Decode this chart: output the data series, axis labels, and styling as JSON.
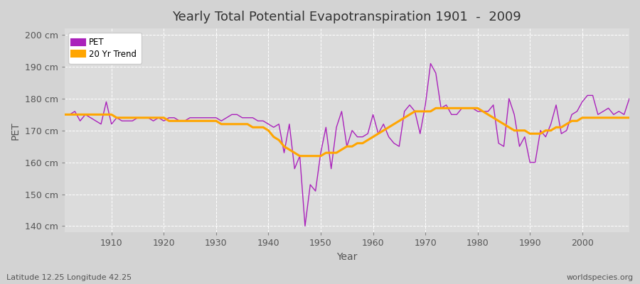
{
  "title": "Yearly Total Potential Evapotranspiration 1901  -  2009",
  "xlabel": "Year",
  "ylabel": "PET",
  "subtitle_left": "Latitude 12.25 Longitude 42.25",
  "subtitle_right": "worldspecies.org",
  "pet_color": "#AA22BB",
  "trend_color": "#FFA500",
  "fig_bg_color": "#D3D3D3",
  "plot_bg_color": "#DCDCDC",
  "grid_color": "#FFFFFF",
  "ylim": [
    138,
    202
  ],
  "yticks": [
    140,
    150,
    160,
    170,
    180,
    190,
    200
  ],
  "ytick_labels": [
    "140 cm",
    "150 cm",
    "160 cm",
    "170 cm",
    "180 cm",
    "190 cm",
    "200 cm"
  ],
  "xticks": [
    1910,
    1920,
    1930,
    1940,
    1950,
    1960,
    1970,
    1980,
    1990,
    2000
  ],
  "xlim": [
    1901,
    2009
  ],
  "years": [
    1901,
    1902,
    1903,
    1904,
    1905,
    1906,
    1907,
    1908,
    1909,
    1910,
    1911,
    1912,
    1913,
    1914,
    1915,
    1916,
    1917,
    1918,
    1919,
    1920,
    1921,
    1922,
    1923,
    1924,
    1925,
    1926,
    1927,
    1928,
    1929,
    1930,
    1931,
    1932,
    1933,
    1934,
    1935,
    1936,
    1937,
    1938,
    1939,
    1940,
    1941,
    1942,
    1943,
    1944,
    1945,
    1946,
    1947,
    1948,
    1949,
    1950,
    1951,
    1952,
    1953,
    1954,
    1955,
    1956,
    1957,
    1958,
    1959,
    1960,
    1961,
    1962,
    1963,
    1964,
    1965,
    1966,
    1967,
    1968,
    1969,
    1970,
    1971,
    1972,
    1973,
    1974,
    1975,
    1976,
    1977,
    1978,
    1979,
    1980,
    1981,
    1982,
    1983,
    1984,
    1985,
    1986,
    1987,
    1988,
    1989,
    1990,
    1991,
    1992,
    1993,
    1994,
    1995,
    1996,
    1997,
    1998,
    1999,
    2000,
    2001,
    2002,
    2003,
    2004,
    2005,
    2006,
    2007,
    2008,
    2009
  ],
  "pet_values": [
    175,
    175,
    176,
    173,
    175,
    174,
    173,
    172,
    179,
    172,
    174,
    173,
    173,
    173,
    174,
    174,
    174,
    173,
    174,
    173,
    174,
    174,
    173,
    173,
    174,
    174,
    174,
    174,
    174,
    174,
    173,
    174,
    175,
    175,
    174,
    174,
    174,
    173,
    173,
    172,
    171,
    172,
    163,
    172,
    158,
    162,
    140,
    153,
    151,
    163,
    171,
    158,
    171,
    176,
    165,
    170,
    168,
    168,
    169,
    175,
    169,
    172,
    168,
    166,
    165,
    176,
    178,
    176,
    169,
    178,
    191,
    188,
    177,
    178,
    175,
    175,
    177,
    177,
    177,
    176,
    176,
    176,
    178,
    166,
    165,
    180,
    175,
    165,
    168,
    160,
    160,
    170,
    168,
    172,
    178,
    169,
    170,
    175,
    176,
    179,
    181,
    181,
    175,
    176,
    177,
    175,
    176,
    175,
    180
  ],
  "trend_values": [
    175,
    175,
    175,
    175,
    175,
    175,
    175,
    175,
    175,
    175,
    174,
    174,
    174,
    174,
    174,
    174,
    174,
    174,
    174,
    174,
    173,
    173,
    173,
    173,
    173,
    173,
    173,
    173,
    173,
    173,
    172,
    172,
    172,
    172,
    172,
    172,
    171,
    171,
    171,
    170,
    168,
    167,
    165,
    164,
    163,
    162,
    162,
    162,
    162,
    162,
    163,
    163,
    163,
    164,
    165,
    165,
    166,
    166,
    167,
    168,
    169,
    170,
    171,
    172,
    173,
    174,
    175,
    176,
    176,
    176,
    176,
    177,
    177,
    177,
    177,
    177,
    177,
    177,
    177,
    177,
    176,
    175,
    174,
    173,
    172,
    171,
    170,
    170,
    170,
    169,
    169,
    169,
    170,
    170,
    171,
    171,
    172,
    173,
    173,
    174,
    174,
    174,
    174,
    174,
    174,
    174,
    174,
    174,
    174
  ]
}
